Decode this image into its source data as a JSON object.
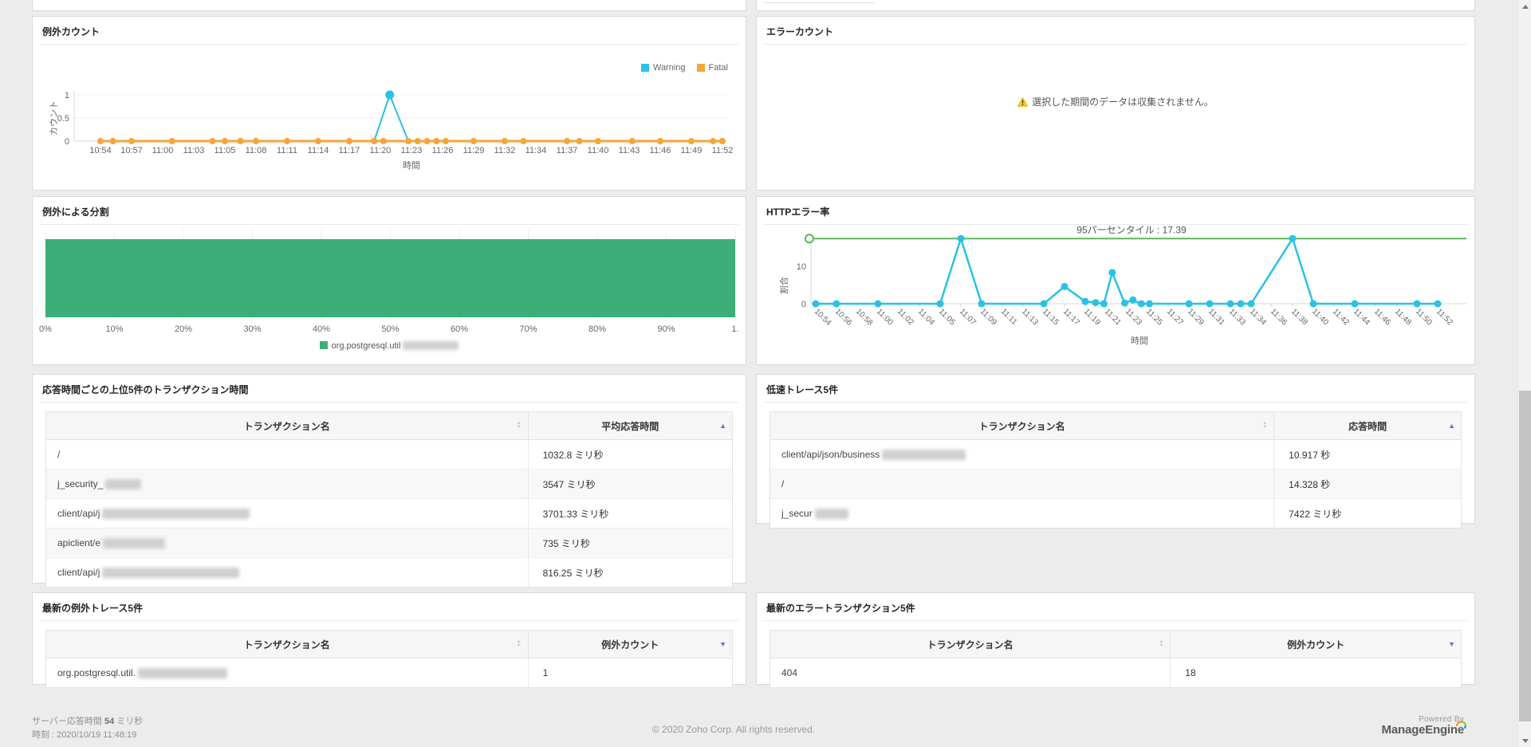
{
  "colors": {
    "warning_series": "#2AC1E4",
    "fatal_series": "#F7A43B",
    "bar_green": "#3BAF77",
    "percentile_green": "#5BB85B",
    "sort_active": "#6f6fd8",
    "page_bg": "#ececec"
  },
  "panels": {
    "exception_count": {
      "title": "例外カウント",
      "chart_data": {
        "type": "line",
        "ylabel": "カウント",
        "xlabel": "時間",
        "yticks": [
          "0",
          "0.5",
          "1"
        ],
        "ylim": [
          0,
          1
        ],
        "x_labels": [
          "10:54",
          "10:57",
          "11:00",
          "11:03",
          "11:05",
          "11:08",
          "11:11",
          "11:14",
          "11:17",
          "11:20",
          "11:23",
          "11:26",
          "11:29",
          "11:32",
          "11:34",
          "11:37",
          "11:40",
          "11:43",
          "11:46",
          "11:49",
          "11:52"
        ],
        "legend": [
          {
            "label": "Warning",
            "color": "#2AC1E4"
          },
          {
            "label": "Fatal",
            "color": "#F7A43B"
          }
        ],
        "series": [
          {
            "name": "Warning",
            "color": "#2AC1E4",
            "points": [
              [
                0,
                0
              ],
              [
                8.8,
                0
              ],
              [
                9.3,
                1
              ],
              [
                9.9,
                0
              ],
              [
                20,
                0
              ]
            ],
            "markers": [
              [
                9.3,
                1
              ]
            ]
          },
          {
            "name": "Fatal",
            "color": "#F7A43B",
            "points": [
              [
                0,
                0
              ],
              [
                20,
                0
              ]
            ],
            "dots": [
              0,
              0.4,
              1,
              2.3,
              3.6,
              4,
              4.5,
              5,
              6,
              7,
              8,
              8.8,
              9.1,
              9.9,
              10.2,
              10.5,
              10.8,
              11.1,
              12,
              13,
              13.6,
              15,
              15.4,
              16,
              17.1,
              18,
              19,
              19.7,
              20
            ]
          }
        ]
      }
    },
    "error_count": {
      "title": "エラーカウント",
      "empty_message": "選択した期間のデータは収集されません。"
    },
    "split_by_exception": {
      "title": "例外による分割",
      "chart_data": {
        "type": "bar-horizontal",
        "x_labels": [
          "0%",
          "10%",
          "20%",
          "30%",
          "40%",
          "50%",
          "60%",
          "70%",
          "80%",
          "90%",
          "1."
        ],
        "series": [
          {
            "name": "org.postgresql.util",
            "color": "#3BAF77",
            "value_percent": 100
          }
        ],
        "legend_label": "org.postgresql.util"
      }
    },
    "http_error_rate": {
      "title": "HTTPエラー率",
      "chart_data": {
        "type": "line",
        "annotation": "95パーセンタイル : 17.39",
        "percentile_value": 17.39,
        "percentile_color": "#5BB85B",
        "ylabel": "割合",
        "xlabel": "時間",
        "yticks": [
          "0",
          "10"
        ],
        "x_labels": [
          "10:54",
          "10:56",
          "10:58",
          "11:00",
          "11:02",
          "11:04",
          "11:05",
          "11:07",
          "11:09",
          "11:11",
          "11:13",
          "11:15",
          "11:17",
          "11:19",
          "11:21",
          "11:23",
          "11:25",
          "11:27",
          "11:29",
          "11:31",
          "11:33",
          "11:34",
          "11:36",
          "11:38",
          "11:40",
          "11:42",
          "11:44",
          "11:46",
          "11:48",
          "11:50",
          "11:52"
        ],
        "series": [
          {
            "name": "HTTPエラー率",
            "color": "#2AC1E4",
            "points": [
              [
                0,
                0
              ],
              [
                1,
                0
              ],
              [
                3,
                0
              ],
              [
                6,
                0
              ],
              [
                7,
                17.4
              ],
              [
                8,
                0
              ],
              [
                11,
                0
              ],
              [
                12,
                4.6
              ],
              [
                13,
                0.6
              ],
              [
                13.5,
                0.3
              ],
              [
                13.9,
                0
              ],
              [
                14.3,
                8.3
              ],
              [
                14.9,
                0.2
              ],
              [
                15.3,
                1
              ],
              [
                15.7,
                0
              ],
              [
                16.1,
                0
              ],
              [
                18,
                0
              ],
              [
                19,
                0
              ],
              [
                20,
                0
              ],
              [
                20.5,
                0
              ],
              [
                21,
                0
              ],
              [
                23,
                17.4
              ],
              [
                24,
                0
              ],
              [
                26,
                0
              ],
              [
                29,
                0
              ],
              [
                30,
                0
              ]
            ]
          }
        ]
      }
    },
    "top5_response": {
      "title": "応答時間ごとの上位5件のトランザクション時間",
      "table": {
        "columns": [
          {
            "label": "トランザクション名",
            "sort": "none"
          },
          {
            "label": "平均応答時間",
            "sort": "asc"
          }
        ],
        "col_split": 70.3,
        "rows": [
          {
            "name": "/",
            "blur": 0,
            "value": "1032.8 ミリ秒"
          },
          {
            "name": "j_security_",
            "blur": 45,
            "value": "3547 ミリ秒"
          },
          {
            "name": "client/api/j",
            "blur": 185,
            "value": "3701.33 ミリ秒"
          },
          {
            "name": "apiclient/e",
            "blur": 78,
            "value": "735 ミリ秒"
          },
          {
            "name": "client/api/j",
            "blur": 172,
            "value": "816.25 ミリ秒"
          }
        ]
      }
    },
    "slow_traces": {
      "title": "低速トレース5件",
      "table": {
        "columns": [
          {
            "label": "トランザクション名",
            "sort": "none"
          },
          {
            "label": "応答時間",
            "sort": "asc"
          }
        ],
        "col_split": 73,
        "rows": [
          {
            "name": "client/api/json/business",
            "blur": 105,
            "value": "10.917 秒"
          },
          {
            "name": "/",
            "blur": 0,
            "value": "14.328 秒"
          },
          {
            "name": "j_secur",
            "blur": 42,
            "value": "7422 ミリ秒"
          }
        ]
      }
    },
    "latest_exception_traces": {
      "title": "最新の例外トレース5件",
      "table": {
        "columns": [
          {
            "label": "トランザクション名",
            "sort": "none"
          },
          {
            "label": "例外カウント",
            "sort": "desc"
          }
        ],
        "col_split": 70.3,
        "rows": [
          {
            "name": "org.postgresql.util.",
            "blur": 112,
            "value": "1"
          }
        ]
      }
    },
    "latest_error_transactions": {
      "title": "最新のエラートランザクション5件",
      "table": {
        "columns": [
          {
            "label": "トランザクション名",
            "sort": "none"
          },
          {
            "label": "例外カウント",
            "sort": "desc"
          }
        ],
        "col_split": 58,
        "rows": [
          {
            "name": "404",
            "blur": 0,
            "value": "18"
          }
        ]
      }
    }
  },
  "footer": {
    "server_response_prefix": "サーバー応答時間",
    "server_response_value": "54",
    "server_response_suffix": "ミリ秒",
    "timestamp": "時刻 : 2020/10/19 11:48:19",
    "copyright": "© 2020 Zoho Corp.   All rights reserved.",
    "powered_by": "Powered By",
    "brand": "ManageEngine"
  }
}
